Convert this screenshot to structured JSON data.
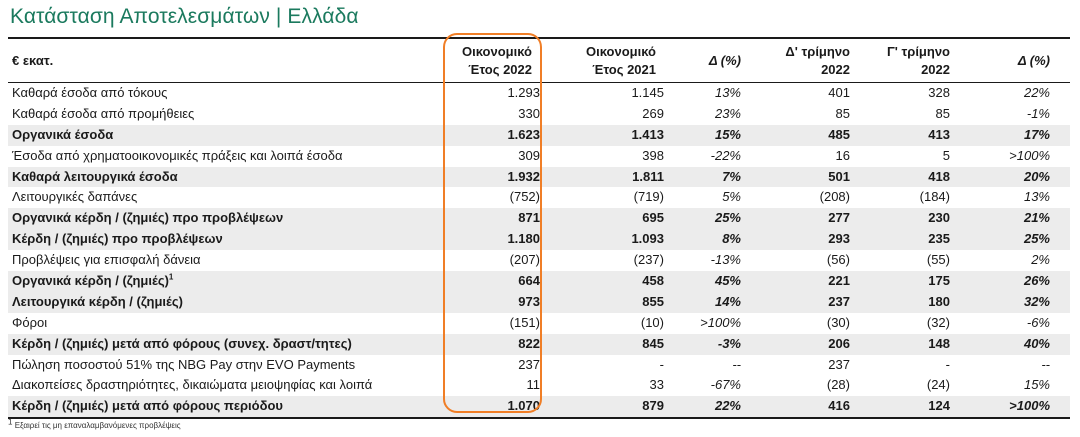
{
  "title": "Κατάσταση Αποτελεσμάτων | Ελλάδα",
  "header": {
    "unit": "€ εκατ.",
    "col1": [
      "Οικονομικό",
      "Έτος 2022"
    ],
    "col2": [
      "Οικονομικό",
      "Έτος 2021"
    ],
    "col3": "Δ (%)",
    "col4": [
      "Δ' τρίμηνο",
      "2022"
    ],
    "col5": [
      "Γ' τρίμηνο",
      "2022"
    ],
    "col6": "Δ (%)"
  },
  "rows": [
    {
      "label": "Καθαρά έσοδα από τόκους",
      "fy22": "1.293",
      "fy21": "1.145",
      "d1": "13%",
      "q4": "401",
      "q3": "328",
      "d2": "22%",
      "bold": false,
      "shaded": false
    },
    {
      "label": "Καθαρά έσοδα από προμήθειες",
      "fy22": "330",
      "fy21": "269",
      "d1": "23%",
      "q4": "85",
      "q3": "85",
      "d2": "-1%",
      "bold": false,
      "shaded": false
    },
    {
      "label": "Οργανικά έσοδα",
      "fy22": "1.623",
      "fy21": "1.413",
      "d1": "15%",
      "q4": "485",
      "q3": "413",
      "d2": "17%",
      "bold": true,
      "shaded": true
    },
    {
      "label": "Έσοδα από χρηματοοικονομικές πράξεις και λοιπά έσοδα",
      "fy22": "309",
      "fy21": "398",
      "d1": "-22%",
      "q4": "16",
      "q3": "5",
      "d2": ">100%",
      "bold": false,
      "shaded": false
    },
    {
      "label": "Καθαρά λειτουργικά έσοδα",
      "fy22": "1.932",
      "fy21": "1.811",
      "d1": "7%",
      "q4": "501",
      "q3": "418",
      "d2": "20%",
      "bold": true,
      "shaded": true
    },
    {
      "label": "Λειτουργικές δαπάνες",
      "fy22": "(752)",
      "fy21": "(719)",
      "d1": "5%",
      "q4": "(208)",
      "q3": "(184)",
      "d2": "13%",
      "bold": false,
      "shaded": false
    },
    {
      "label": "Οργανικά κέρδη / (ζημιές) προ προβλέψεων",
      "fy22": "871",
      "fy21": "695",
      "d1": "25%",
      "q4": "277",
      "q3": "230",
      "d2": "21%",
      "bold": true,
      "shaded": true
    },
    {
      "label": "Κέρδη / (ζημιές) προ προβλέψεων",
      "fy22": "1.180",
      "fy21": "1.093",
      "d1": "8%",
      "q4": "293",
      "q3": "235",
      "d2": "25%",
      "bold": true,
      "shaded": true
    },
    {
      "label": "Προβλέψεις για επισφαλή δάνεια",
      "fy22": "(207)",
      "fy21": "(237)",
      "d1": "-13%",
      "q4": "(56)",
      "q3": "(55)",
      "d2": "2%",
      "bold": false,
      "shaded": false
    },
    {
      "label": "Οργανικά κέρδη / (ζημιές)",
      "sup": "1",
      "fy22": "664",
      "fy21": "458",
      "d1": "45%",
      "q4": "221",
      "q3": "175",
      "d2": "26%",
      "bold": true,
      "shaded": true
    },
    {
      "label": "Λειτουργικά κέρδη / (ζημιές)",
      "fy22": "973",
      "fy21": "855",
      "d1": "14%",
      "q4": "237",
      "q3": "180",
      "d2": "32%",
      "bold": true,
      "shaded": true
    },
    {
      "label": "Φόροι",
      "fy22": "(151)",
      "fy21": "(10)",
      "d1": ">100%",
      "q4": "(30)",
      "q3": "(32)",
      "d2": "-6%",
      "bold": false,
      "shaded": false
    },
    {
      "label": "Κέρδη / (ζημιές) μετά από φόρους (συνεχ. δραστ/τητες)",
      "fy22": "822",
      "fy21": "845",
      "d1": "-3%",
      "q4": "206",
      "q3": "148",
      "d2": "40%",
      "bold": true,
      "shaded": true
    },
    {
      "label": "Πώληση ποσοστού 51% της NBG Pay στην EVO Payments",
      "fy22": "237",
      "fy21": "-",
      "d1": "--",
      "q4": "237",
      "q3": "-",
      "d2": "--",
      "bold": false,
      "shaded": false
    },
    {
      "label": "Διακοπείσες δραστηριότητες, δικαιώματα μειοψηφίας και λοιπά",
      "fy22": "11",
      "fy21": "33",
      "d1": "-67%",
      "q4": "(28)",
      "q3": "(24)",
      "d2": "15%",
      "bold": false,
      "shaded": false
    },
    {
      "label": "Κέρδη / (ζημιές) μετά από φόρους περιόδου",
      "fy22": "1.070",
      "fy21": "879",
      "d1": "22%",
      "q4": "416",
      "q3": "124",
      "d2": ">100%",
      "bold": true,
      "shaded": true
    }
  ],
  "footnote": {
    "sup": "1",
    "text": "Εξαιρεί τις μη επαναλαμβανόμενες προβλέψεις"
  },
  "colors": {
    "title": "#1b7a5e",
    "highlight": "#f07e26",
    "shade": "#ececec"
  }
}
